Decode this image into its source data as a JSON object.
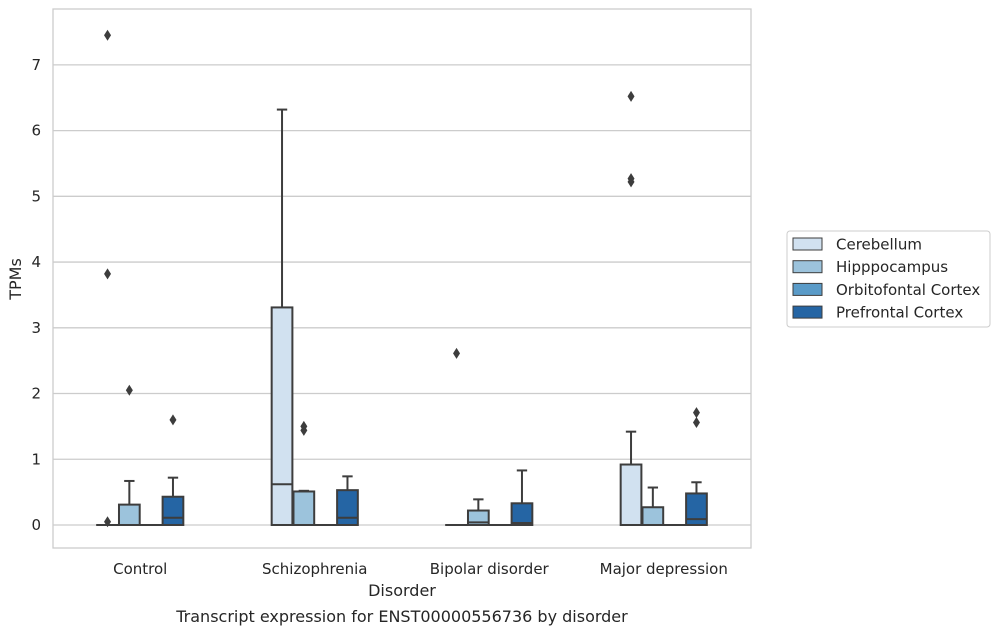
{
  "chart_data": {
    "type": "box",
    "xlabel": "Disorder",
    "ylabel": "TPMs",
    "caption": "Transcript expression for ENST00000556736 by disorder",
    "ylim": [
      -0.35,
      7.85
    ],
    "yticks": [
      0,
      1,
      2,
      3,
      4,
      5,
      6,
      7
    ],
    "grid": "horizontal",
    "legend_position": "right",
    "categories": [
      "Control",
      "Schizophrenia",
      "Bipolar disorder",
      "Major depression"
    ],
    "series": [
      {
        "name": "Cerebellum",
        "color": "#d1e1f0",
        "boxes": [
          {
            "q1": 0,
            "median": 0,
            "q3": 0,
            "whisker_low": 0,
            "whisker_high": 0,
            "outliers": [
              0.05,
              3.82,
              7.45
            ]
          },
          {
            "q1": 0,
            "median": 0.62,
            "q3": 3.31,
            "whisker_low": 0,
            "whisker_high": 6.32,
            "outliers": []
          },
          {
            "q1": 0,
            "median": 0,
            "q3": 0,
            "whisker_low": 0,
            "whisker_high": 0,
            "outliers": [
              2.61
            ]
          },
          {
            "q1": 0,
            "median": 0,
            "q3": 0.92,
            "whisker_low": 0,
            "whisker_high": 1.42,
            "outliers": [
              5.22,
              5.27,
              6.52
            ]
          }
        ]
      },
      {
        "name": "Hipppocampus",
        "color": "#9cc3dc",
        "boxes": [
          {
            "q1": 0,
            "median": 0,
            "q3": 0.31,
            "whisker_low": 0,
            "whisker_high": 0.67,
            "outliers": [
              2.05
            ]
          },
          {
            "q1": 0,
            "median": 0,
            "q3": 0.51,
            "whisker_low": 0,
            "whisker_high": 0.52,
            "outliers": [
              1.44,
              1.5
            ]
          },
          {
            "q1": 0,
            "median": 0.04,
            "q3": 0.22,
            "whisker_low": 0,
            "whisker_high": 0.39,
            "outliers": []
          },
          {
            "q1": 0,
            "median": 0,
            "q3": 0.27,
            "whisker_low": 0,
            "whisker_high": 0.57,
            "outliers": []
          }
        ]
      },
      {
        "name": "Orbitofontal Cortex",
        "color": "#5a9bc8",
        "boxes": [
          {
            "q1": 0,
            "median": 0,
            "q3": 0,
            "whisker_low": 0,
            "whisker_high": 0,
            "outliers": []
          },
          {
            "q1": 0,
            "median": 0,
            "q3": 0,
            "whisker_low": 0,
            "whisker_high": 0,
            "outliers": []
          },
          {
            "q1": 0,
            "median": 0,
            "q3": 0,
            "whisker_low": 0,
            "whisker_high": 0,
            "outliers": []
          },
          {
            "q1": 0,
            "median": 0,
            "q3": 0,
            "whisker_low": 0,
            "whisker_high": 0,
            "outliers": []
          }
        ]
      },
      {
        "name": "Prefrontal Cortex",
        "color": "#2565a4",
        "boxes": [
          {
            "q1": 0,
            "median": 0.11,
            "q3": 0.43,
            "whisker_low": 0,
            "whisker_high": 0.72,
            "outliers": [
              1.6
            ]
          },
          {
            "q1": 0,
            "median": 0.11,
            "q3": 0.53,
            "whisker_low": 0,
            "whisker_high": 0.74,
            "outliers": []
          },
          {
            "q1": 0,
            "median": 0.03,
            "q3": 0.33,
            "whisker_low": 0,
            "whisker_high": 0.83,
            "outliers": []
          },
          {
            "q1": 0,
            "median": 0.09,
            "q3": 0.48,
            "whisker_low": 0,
            "whisker_high": 0.65,
            "outliers": [
              1.56,
              1.71
            ]
          }
        ]
      }
    ]
  }
}
